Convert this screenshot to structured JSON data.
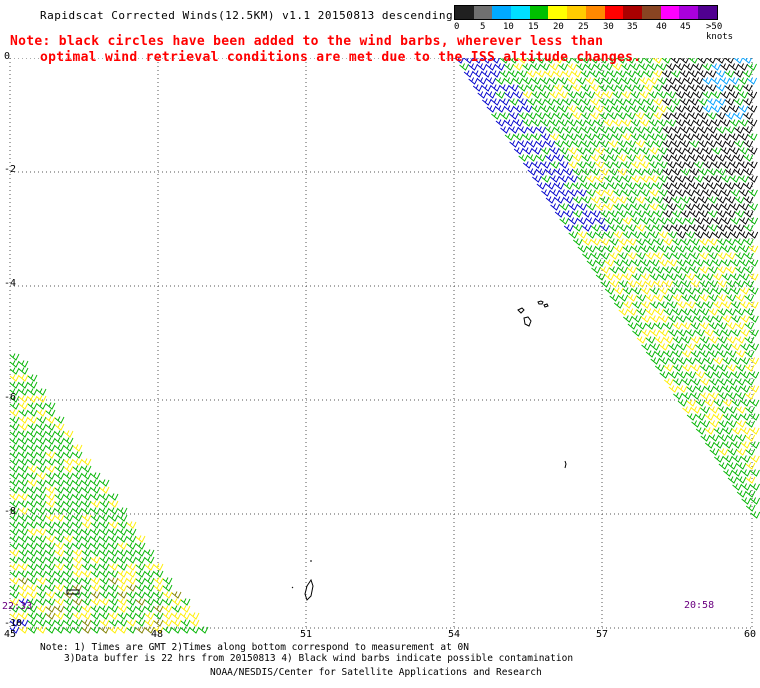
{
  "title": "Rapidscat Corrected Winds(12.5KM) v1.1 20150813 descending",
  "note": {
    "line1": "Note: black circles have been added to the wind barbs, wherever less than",
    "line2": "optimal wind retrieval conditions are met due to the ISS altitude changes."
  },
  "legend": {
    "colors": [
      "#202020",
      "#707070",
      "#00aaff",
      "#00e0ff",
      "#00c000",
      "#ffff00",
      "#ffcc00",
      "#ff8800",
      "#ff0000",
      "#aa0000",
      "#884422",
      "#ff00ff",
      "#aa00dd",
      "#500090"
    ],
    "labels": [
      "0",
      "5",
      "10",
      "15",
      "20",
      "25",
      "30",
      "35",
      "40",
      "45",
      ">50 knots"
    ]
  },
  "axes": {
    "y_labels": [
      "0",
      "-2",
      "-4",
      "-6",
      "-8",
      "-10"
    ],
    "x_labels": [
      "45",
      "48",
      "51",
      "54",
      "57",
      "60"
    ]
  },
  "times": {
    "left": "22:33",
    "right": "20:58"
  },
  "footer": {
    "line1": "Note: 1) Times are GMT 2)Times along bottom correspond to measurement at 0N",
    "line2": "3)Data buffer is 22 hrs from 20150813 4) Black wind barbs indicate possible contamination",
    "line3": "NOAA/NESDIS/Center for Satellite Applications and Research"
  }
}
